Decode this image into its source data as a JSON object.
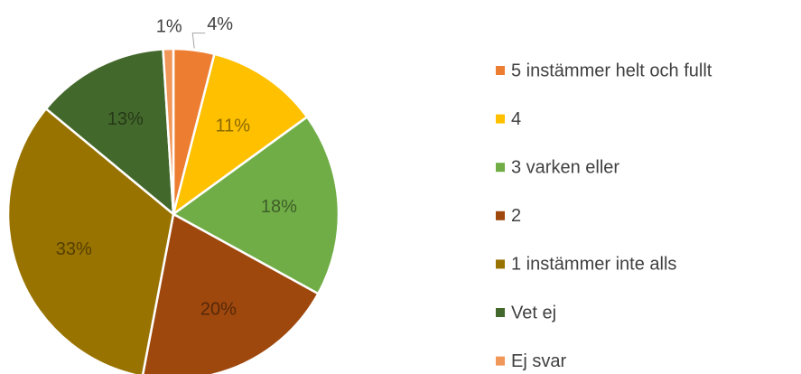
{
  "chart_data": {
    "type": "pie",
    "categories": [
      "5 instämmer helt och fullt",
      "4",
      "3 varken eller",
      "2",
      "1 instämmer inte alls",
      "Vet ej",
      "Ej svar"
    ],
    "values": [
      4,
      11,
      18,
      20,
      33,
      13,
      1
    ],
    "value_labels": [
      "4%",
      "11%",
      "18%",
      "20%",
      "33%",
      "13%",
      "1%"
    ],
    "colors": [
      "#ED7D31",
      "#FFC000",
      "#70AD47",
      "#9E480E",
      "#997300",
      "#43682B",
      "#F1975A"
    ],
    "legend": "right"
  }
}
